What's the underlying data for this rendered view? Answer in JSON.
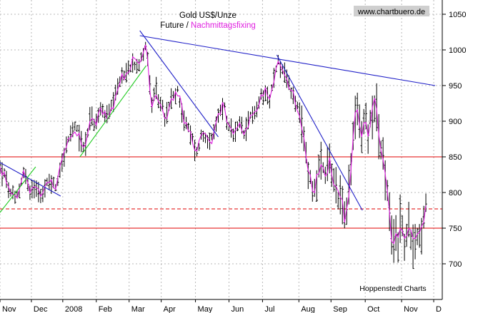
{
  "chart_data": {
    "type": "ohlc",
    "title": "Gold US$/Unze",
    "subtitle_prefix": "Future / ",
    "subtitle_highlight": "Nachmittagsfixing",
    "watermark": "www.chartbuero.de",
    "credit": "Hoppenstedt Charts",
    "ylim": [
      650,
      1070
    ],
    "yticks": [
      700,
      750,
      800,
      850,
      900,
      950,
      1000,
      1050
    ],
    "x_domain": [
      0,
      620
    ],
    "months": [
      {
        "label": "Nov",
        "x": 0
      },
      {
        "label": "Dec",
        "x": 44
      },
      {
        "label": "2008",
        "x": 88
      },
      {
        "label": "Feb",
        "x": 135
      },
      {
        "label": "Mar",
        "x": 181
      },
      {
        "label": "Apr",
        "x": 226
      },
      {
        "label": "May",
        "x": 274
      },
      {
        "label": "Jun",
        "x": 321
      },
      {
        "label": "Jul",
        "x": 368
      },
      {
        "label": "Aug",
        "x": 419
      },
      {
        "label": "Sep",
        "x": 464
      },
      {
        "label": "Oct",
        "x": 512
      },
      {
        "label": "Nov",
        "x": 563
      },
      {
        "label": "D",
        "x": 608
      }
    ],
    "horizontal_lines": [
      {
        "value": 850,
        "color": "#e00000",
        "dashed": false
      },
      {
        "value": 777,
        "color": "#e00000",
        "dashed": true
      },
      {
        "value": 750,
        "color": "#e00000",
        "dashed": false
      }
    ],
    "trend_lines": [
      {
        "color": "#2020c8",
        "from": [
          0,
          842
        ],
        "to": [
          85,
          795
        ]
      },
      {
        "color": "#2020c8",
        "from": [
          196,
          1027
        ],
        "to": [
          306,
          878
        ]
      },
      {
        "color": "#2020c8",
        "from": [
          196,
          1020
        ],
        "to": [
          610,
          950
        ]
      },
      {
        "color": "#2020c8",
        "from": [
          388,
          993
        ],
        "to": [
          508,
          775
        ]
      },
      {
        "color": "#22cc22",
        "from": [
          0,
          772
        ],
        "to": [
          50,
          836
        ]
      },
      {
        "color": "#22cc22",
        "from": [
          112,
          850
        ],
        "to": [
          205,
          978
        ]
      }
    ],
    "anchors": [
      [
        0,
        835
      ],
      [
        8,
        820
      ],
      [
        14,
        798
      ],
      [
        22,
        790
      ],
      [
        28,
        808
      ],
      [
        34,
        832
      ],
      [
        42,
        798
      ],
      [
        50,
        812
      ],
      [
        60,
        795
      ],
      [
        68,
        818
      ],
      [
        78,
        808
      ],
      [
        86,
        840
      ],
      [
        94,
        868
      ],
      [
        104,
        892
      ],
      [
        112,
        878
      ],
      [
        118,
        860
      ],
      [
        126,
        905
      ],
      [
        134,
        895
      ],
      [
        142,
        918
      ],
      [
        150,
        906
      ],
      [
        160,
        925
      ],
      [
        168,
        958
      ],
      [
        178,
        968
      ],
      [
        186,
        985
      ],
      [
        196,
        980
      ],
      [
        204,
        1008
      ],
      [
        208,
        978
      ],
      [
        212,
        920
      ],
      [
        218,
        940
      ],
      [
        226,
        925
      ],
      [
        232,
        900
      ],
      [
        240,
        930
      ],
      [
        250,
        942
      ],
      [
        258,
        900
      ],
      [
        266,
        885
      ],
      [
        272,
        868
      ],
      [
        276,
        855
      ],
      [
        282,
        880
      ],
      [
        290,
        878
      ],
      [
        298,
        872
      ],
      [
        306,
        908
      ],
      [
        314,
        925
      ],
      [
        320,
        890
      ],
      [
        328,
        878
      ],
      [
        336,
        895
      ],
      [
        344,
        880
      ],
      [
        352,
        912
      ],
      [
        360,
        915
      ],
      [
        366,
        935
      ],
      [
        372,
        945
      ],
      [
        378,
        930
      ],
      [
        384,
        960
      ],
      [
        390,
        985
      ],
      [
        394,
        975
      ],
      [
        400,
        968
      ],
      [
        406,
        945
      ],
      [
        412,
        935
      ],
      [
        418,
        915
      ],
      [
        424,
        885
      ],
      [
        430,
        845
      ],
      [
        434,
        825
      ],
      [
        440,
        798
      ],
      [
        444,
        820
      ],
      [
        450,
        840
      ],
      [
        456,
        820
      ],
      [
        462,
        845
      ],
      [
        468,
        815
      ],
      [
        474,
        800
      ],
      [
        480,
        790
      ],
      [
        484,
        752
      ],
      [
        488,
        790
      ],
      [
        492,
        828
      ],
      [
        496,
        890
      ],
      [
        500,
        925
      ],
      [
        504,
        895
      ],
      [
        508,
        880
      ],
      [
        512,
        910
      ],
      [
        516,
        875
      ],
      [
        520,
        908
      ],
      [
        526,
        935
      ],
      [
        530,
        890
      ],
      [
        534,
        860
      ],
      [
        538,
        840
      ],
      [
        542,
        805
      ],
      [
        546,
        770
      ],
      [
        550,
        715
      ],
      [
        554,
        745
      ],
      [
        558,
        735
      ],
      [
        562,
        762
      ],
      [
        568,
        728
      ],
      [
        574,
        752
      ],
      [
        580,
        730
      ],
      [
        586,
        745
      ],
      [
        592,
        748
      ],
      [
        596,
        762
      ],
      [
        598,
        795
      ]
    ]
  }
}
